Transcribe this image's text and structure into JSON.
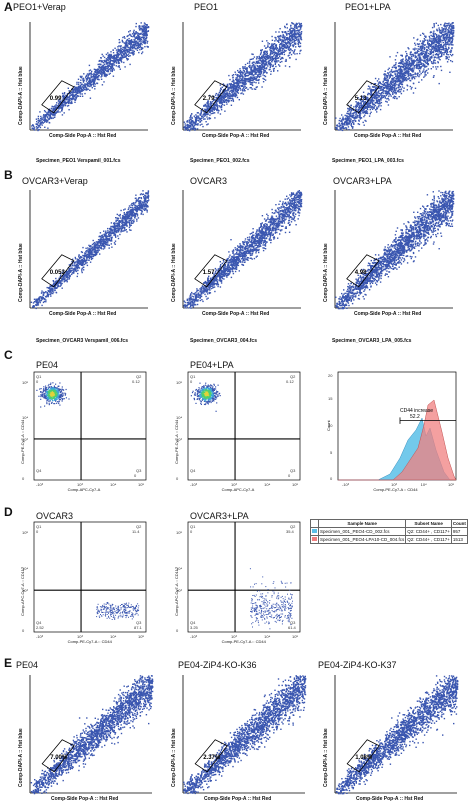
{
  "panels": {
    "A": {
      "letter": "A",
      "plots": [
        {
          "title": "PEO1+Verap",
          "gate": "0.99",
          "file": "Specimen_PEO1 Verspamil_001.fcs"
        },
        {
          "title": "PEO1",
          "gate": "2.79",
          "file": "Specimen_PEO1_002.fcs"
        },
        {
          "title": "PEO1+LPA",
          "gate": "5.13",
          "file": "Specimen_PEO1_LPA_003.fcs"
        }
      ],
      "ylabel": "Comp-DAPI-A :: Hst blue",
      "xlabel": "Comp-Side Pop-A :: Hst Red"
    },
    "B": {
      "letter": "B",
      "plots": [
        {
          "title": "OVCAR3+Verap",
          "gate": "0.053",
          "file": "Specimen_OVCAR3 Verspamil_006.fcs"
        },
        {
          "title": "OVCAR3",
          "gate": "1.57",
          "file": "Specimen_OVCAR3_004.fcs"
        },
        {
          "title": "OVCAR3+LPA",
          "gate": "4.98",
          "file": "Specimen_OVCAR3_LPA_005.fcs"
        }
      ],
      "ylabel": "Comp-DAPI-A :: Hst blue",
      "xlabel": "Comp-Side Pop-A :: Hst Red"
    },
    "C": {
      "letter": "C",
      "plots": [
        {
          "title": "PE04",
          "q1": "Q1",
          "q1v": "0",
          "q2": "Q2",
          "q2v": "0.12",
          "q4": "Q4",
          "q3": "Q3",
          "q3v": "0"
        },
        {
          "title": "PE04+LPA",
          "q1": "Q1",
          "q1v": "0",
          "q2": "Q2",
          "q2v": "0.12",
          "q4": "Q4",
          "q3": "Q3",
          "q3v": "0"
        }
      ],
      "ylabel": "Comp-PE-Cy7-A :: CD44",
      "xlabel": "Comp-APC-Cy7-A",
      "hist": {
        "label": "CD44 increase",
        "value": "52.2",
        "ylabel": "Count",
        "xlabel": "Comp-PE-Cy7-A :: CD44"
      }
    },
    "D": {
      "letter": "D",
      "plots": [
        {
          "title": "OVCAR3",
          "q1": "Q1",
          "q1v": "0",
          "q2": "Q2",
          "q2v": "11.4",
          "q4": "Q4",
          "q4v": "2.52",
          "q3": "Q3",
          "q3v": "87.1"
        },
        {
          "title": "OVCAR3+LPA",
          "q1": "Q1",
          "q1v": "0",
          "q2": "Q2",
          "q2v": "35.4",
          "q4": "Q4",
          "q4v": "3.25",
          "q3": "Q3",
          "q3v": "61.4"
        }
      ],
      "ylabel": "Comp-APC-Cy7-A :: CD117",
      "xlabel": "Comp-PE-Cy7-A :: CD44",
      "table": {
        "headers": [
          "Sample Name",
          "Subset Name",
          "Count"
        ],
        "rows": [
          {
            "sample": "Specimen_001_PEO4-CD_002.fcs",
            "subset": "Q2: CD44+ , CD117+",
            "count": "957",
            "color": "#5bc0e8"
          },
          {
            "sample": "Specimen_001_PEO4-LPA10-CD_004.fcs",
            "subset": "Q2: CD44+ , CD117+",
            "count": "1513",
            "color": "#f08080"
          }
        ]
      }
    },
    "E": {
      "letter": "E",
      "plots": [
        {
          "title": "PE04",
          "gate": "7.00%"
        },
        {
          "title": "PE04-ZiP4-KO-K36",
          "gate": "2.37%"
        },
        {
          "title": "PE04-ZiP4-KO-K37",
          "gate": "1.08%"
        }
      ],
      "ylabel": "Comp-DAPI-A :: Hst blue",
      "xlabel": "Comp-Side Pop-A :: Hst Red"
    }
  },
  "ticks": {
    "neg": "-10³",
    "zero": "0",
    "t3": "10³",
    "t4": "10⁴",
    "t5": "10⁵",
    "c0": "0",
    "c5": "5",
    "c10": "10",
    "c15": "15",
    "c20": "20"
  },
  "colors": {
    "dots": "#3a56b0",
    "dotsDense": "#27408f",
    "hist_blue": "#5bc0e8",
    "hist_red": "#f08080",
    "gate": "#000000"
  }
}
